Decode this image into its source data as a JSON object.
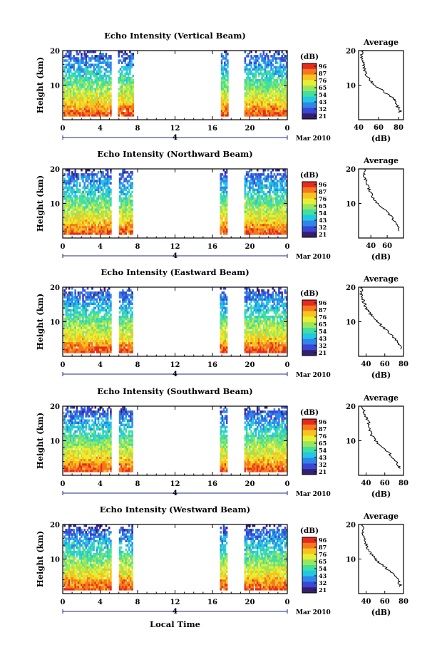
{
  "figure": {
    "xlabel": "Local Time",
    "date_label": "Mar 2010",
    "day_marker": "4",
    "colorbar": {
      "unit": "(dB)",
      "ticks": [
        "96",
        "87",
        "76",
        "65",
        "54",
        "43",
        "32",
        "21"
      ],
      "colors": [
        "#e62a1e",
        "#f5781e",
        "#f8c31f",
        "#e6ef33",
        "#9ae55e",
        "#3fe0a0",
        "#24c6e6",
        "#2f86e8",
        "#3a47d6",
        "#35206e"
      ]
    }
  },
  "chart_data": [
    {
      "type": "heatmap",
      "title": "Echo Intensity (Vertical Beam)",
      "ylabel": "Height (km)",
      "xlim": [
        0,
        24
      ],
      "ylim": [
        0,
        20
      ],
      "xticks": [
        "0",
        "4",
        "8",
        "12",
        "16",
        "20",
        "0"
      ],
      "yticks": [
        "10",
        "20"
      ],
      "data_blocks_hours": [
        [
          0.1,
          5.2
        ],
        [
          5.9,
          7.6
        ],
        [
          16.9,
          17.7
        ],
        [
          19.4,
          24
        ]
      ],
      "value_range": [
        21,
        96
      ],
      "profile": {
        "title": "Average",
        "xlabel": "(dB)",
        "xlim": [
          40,
          85
        ],
        "xticks": [
          "40",
          "60",
          "80"
        ],
        "heights_km": [
          2,
          4,
          6,
          8,
          10,
          12,
          14,
          16,
          18,
          20
        ],
        "values_db": [
          82,
          79,
          75,
          66,
          56,
          50,
          46,
          45,
          43,
          44
        ]
      }
    },
    {
      "type": "heatmap",
      "title": "Echo Intensity (Northward Beam)",
      "ylabel": "Height (km)",
      "xlim": [
        0,
        24
      ],
      "ylim": [
        0,
        20
      ],
      "xticks": [
        "0",
        "4",
        "8",
        "12",
        "16",
        "20",
        "0"
      ],
      "yticks": [
        "10",
        "20"
      ],
      "data_blocks_hours": [
        [
          0.1,
          5.2
        ],
        [
          6.0,
          7.5
        ],
        [
          16.8,
          17.6
        ],
        [
          19.4,
          24
        ]
      ],
      "value_range": [
        21,
        96
      ],
      "profile": {
        "title": "Average",
        "xlabel": "(dB)",
        "xlim": [
          25,
          80
        ],
        "xticks": [
          "40",
          "60"
        ],
        "heights_km": [
          2,
          4,
          6,
          8,
          10,
          12,
          14,
          16,
          18,
          20
        ],
        "values_db": [
          75,
          72,
          66,
          58,
          48,
          42,
          38,
          35,
          32,
          33
        ]
      }
    },
    {
      "type": "heatmap",
      "title": "Echo Intensity (Eastward Beam)",
      "ylabel": "Height (km)",
      "xlim": [
        0,
        24
      ],
      "ylim": [
        0,
        20
      ],
      "xticks": [
        "0",
        "4",
        "8",
        "12",
        "16",
        "20",
        "0"
      ],
      "yticks": [
        "10",
        "20"
      ],
      "data_blocks_hours": [
        [
          0.1,
          5.2
        ],
        [
          6.0,
          7.5
        ],
        [
          16.8,
          17.6
        ],
        [
          19.4,
          24
        ]
      ],
      "value_range": [
        21,
        96
      ],
      "profile": {
        "title": "Average",
        "xlabel": "(dB)",
        "xlim": [
          32,
          80
        ],
        "xticks": [
          "40",
          "60",
          "80"
        ],
        "heights_km": [
          2,
          4,
          6,
          8,
          10,
          12,
          14,
          16,
          18,
          20
        ],
        "values_db": [
          78,
          75,
          68,
          60,
          52,
          45,
          40,
          37,
          35,
          36
        ]
      }
    },
    {
      "type": "heatmap",
      "title": "Echo Intensity (Southward Beam)",
      "ylabel": "Height (km)",
      "xlim": [
        0,
        24
      ],
      "ylim": [
        0,
        20
      ],
      "xticks": [
        "0",
        "4",
        "8",
        "12",
        "16",
        "20",
        "0"
      ],
      "yticks": [
        "10",
        "20"
      ],
      "data_blocks_hours": [
        [
          0.1,
          5.2
        ],
        [
          6.0,
          7.5
        ],
        [
          16.8,
          17.6
        ],
        [
          19.4,
          24
        ]
      ],
      "value_range": [
        21,
        96
      ],
      "profile": {
        "title": "Average",
        "xlabel": "(dB)",
        "xlim": [
          32,
          80
        ],
        "xticks": [
          "40",
          "60",
          "80"
        ],
        "heights_km": [
          2,
          4,
          6,
          8,
          10,
          12,
          14,
          16,
          18,
          20
        ],
        "values_db": [
          76,
          72,
          66,
          58,
          50,
          45,
          44,
          42,
          38,
          36
        ]
      }
    },
    {
      "type": "heatmap",
      "title": "Echo Intensity (Westward Beam)",
      "ylabel": "Height (km)",
      "xlim": [
        0,
        24
      ],
      "ylim": [
        0,
        20
      ],
      "xticks": [
        "0",
        "4",
        "8",
        "12",
        "16",
        "20",
        "0"
      ],
      "yticks": [
        "10",
        "20"
      ],
      "data_blocks_hours": [
        [
          0.1,
          5.2
        ],
        [
          6.0,
          7.5
        ],
        [
          16.8,
          17.6
        ],
        [
          19.4,
          24
        ]
      ],
      "value_range": [
        21,
        96
      ],
      "profile": {
        "title": "Average",
        "xlabel": "(dB)",
        "xlim": [
          32,
          80
        ],
        "xticks": [
          "40",
          "60",
          "80"
        ],
        "heights_km": [
          2,
          4,
          6,
          8,
          10,
          12,
          14,
          16,
          18,
          20
        ],
        "values_db": [
          77,
          74,
          68,
          58,
          50,
          44,
          40,
          38,
          36,
          37
        ]
      }
    }
  ]
}
